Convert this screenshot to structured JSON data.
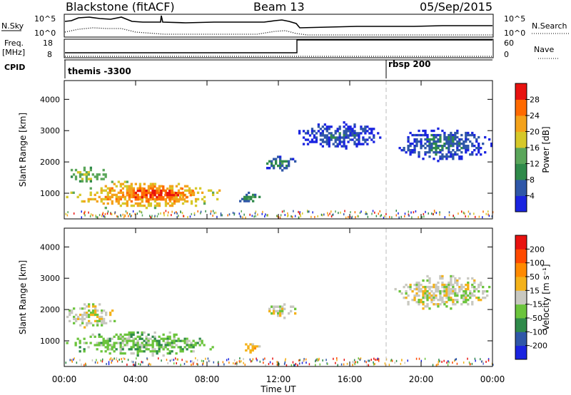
{
  "header": {
    "title": "Blackstone (fitACF)",
    "beam": "Beam 13",
    "date": "05/Sep/2015"
  },
  "noise_panel": {
    "left_label": "N.Sky",
    "right_label": "N.Search",
    "left_ticks": [
      "10^5",
      "10^0"
    ],
    "right_ticks": [
      "10^5",
      "10^0"
    ]
  },
  "freq_panel": {
    "left_label_1": "Freq.",
    "left_label_2": "[MHz]",
    "right_label": "Nave",
    "left_ticks": [
      "18",
      "8"
    ],
    "right_ticks": [
      "60",
      "0"
    ]
  },
  "cpid_panel": {
    "label": "CPID",
    "entries": [
      {
        "name": "themis -3300",
        "start_hour": 0.0
      },
      {
        "name": "rbsp 200",
        "start_hour": 18.0
      }
    ]
  },
  "power_colorbar": {
    "label": "Power [dB]",
    "ticks": [
      "28",
      "24",
      "20",
      "16",
      "12",
      "8",
      "4"
    ],
    "colors": [
      "#1a24e0",
      "#2f57a8",
      "#2f8a4a",
      "#5aa65a",
      "#d6c829",
      "#f4a21a",
      "#ff6a00",
      "#e8120f"
    ]
  },
  "velocity_colorbar": {
    "label": "Velocity [m s⁻¹]",
    "ticks": [
      "200",
      "100",
      "50",
      "15",
      "-15",
      "-50",
      "-100",
      "-200"
    ],
    "colors": [
      "#1a24e0",
      "#2f57a8",
      "#2f8a4a",
      "#6bc43c",
      "#c8c8c0",
      "#f4b21a",
      "#ff8a00",
      "#ff4a00",
      "#e8120f"
    ]
  },
  "axes": {
    "ylabel": "Slant Range [km]",
    "yticks": [
      "4000",
      "3000",
      "2000",
      "1000"
    ],
    "xlabel": "Time UT",
    "xticks": [
      "00:00",
      "04:00",
      "08:00",
      "12:00",
      "16:00",
      "20:00",
      "00:00"
    ]
  },
  "chart_data": [
    {
      "type": "heatmap",
      "title": "",
      "xlabel": "Time UT",
      "ylabel": "Slant Range [km]",
      "x_range_hours": [
        0,
        24
      ],
      "ylim": [
        180,
        4600
      ],
      "colorbar": "Power [dB]",
      "clim": [
        0,
        30
      ],
      "regions": [
        {
          "t": [
            0.0,
            2.5
          ],
          "r": [
            1350,
            1850
          ],
          "value": 16
        },
        {
          "t": [
            0.1,
            9.0
          ],
          "r": [
            500,
            1400
          ],
          "value": 22
        },
        {
          "t": [
            3.0,
            7.5
          ],
          "r": [
            700,
            1250
          ],
          "value": 27
        },
        {
          "t": [
            9.8,
            11.0
          ],
          "r": [
            650,
            1050
          ],
          "value": 10
        },
        {
          "t": [
            11.2,
            13.0
          ],
          "r": [
            1700,
            2200
          ],
          "value": 9
        },
        {
          "t": [
            13.0,
            18.0
          ],
          "r": [
            2400,
            3300
          ],
          "value": 6
        },
        {
          "t": [
            18.5,
            24.0
          ],
          "r": [
            2000,
            3100
          ],
          "value": 7
        }
      ]
    },
    {
      "type": "heatmap",
      "title": "",
      "xlabel": "Time UT",
      "ylabel": "Slant Range [km]",
      "x_range_hours": [
        0,
        24
      ],
      "ylim": [
        180,
        4600
      ],
      "colorbar": "Velocity [m s⁻¹]",
      "clim": [
        -200,
        200
      ],
      "regions": [
        {
          "t": [
            0.0,
            3.0
          ],
          "r": [
            1400,
            2200
          ],
          "value": 0
        },
        {
          "t": [
            0.1,
            8.5
          ],
          "r": [
            500,
            1300
          ],
          "value": -40
        },
        {
          "t": [
            10.0,
            11.0
          ],
          "r": [
            600,
            1050
          ],
          "value": 30
        },
        {
          "t": [
            11.2,
            13.0
          ],
          "r": [
            1700,
            2200
          ],
          "value": 0
        },
        {
          "t": [
            18.5,
            24.0
          ],
          "r": [
            2000,
            3100
          ],
          "value": 0
        }
      ]
    }
  ]
}
